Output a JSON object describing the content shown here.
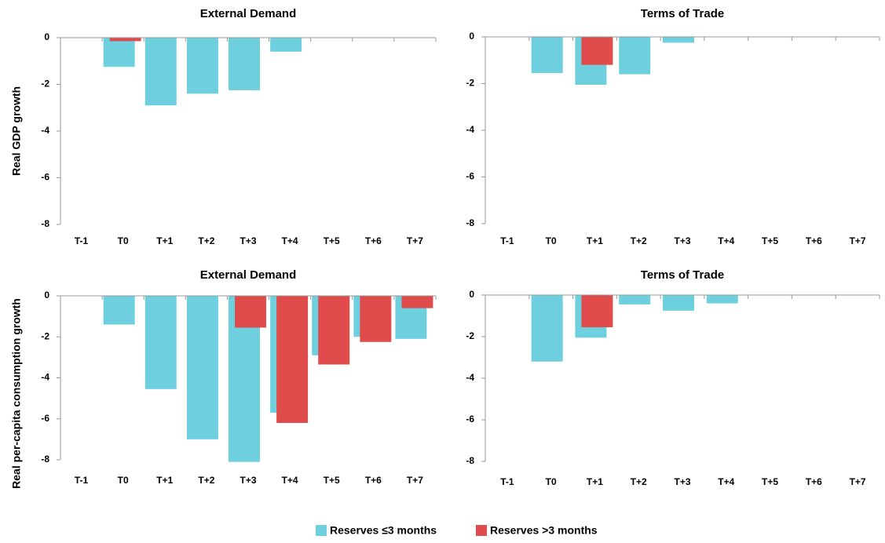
{
  "chart_data": [
    {
      "type": "bar",
      "title": "External Demand",
      "ylabel": "Real GDP growth",
      "categories": [
        "T-1",
        "T0",
        "T+1",
        "T+2",
        "T+3",
        "T+4",
        "T+5",
        "T+6",
        "T+7"
      ],
      "series": [
        {
          "name": "Reserves ≤3 months",
          "color": "#6ecfdf",
          "values": [
            0,
            -1.25,
            -2.9,
            -2.4,
            -2.25,
            -0.6,
            0,
            0,
            0
          ]
        },
        {
          "name": "Reserves >3 months",
          "color": "#e04c4b",
          "values": [
            0,
            -0.15,
            0,
            0,
            0,
            0,
            0,
            0,
            0
          ]
        }
      ],
      "ylim": [
        -8,
        0
      ],
      "yticks": [
        -8,
        -6,
        -4,
        -2,
        0
      ]
    },
    {
      "type": "bar",
      "title": "Terms of Trade",
      "categories": [
        "T-1",
        "T0",
        "T+1",
        "T+2",
        "T+3",
        "T+4",
        "T+5",
        "T+6",
        "T+7"
      ],
      "series": [
        {
          "name": "Reserves ≤3 months",
          "color": "#6ecfdf",
          "values": [
            0,
            -1.55,
            -2.05,
            -1.6,
            -0.25,
            0,
            0,
            0,
            0
          ]
        },
        {
          "name": "Reserves >3 months",
          "color": "#e04c4b",
          "values": [
            0,
            0,
            -1.2,
            0,
            0,
            0,
            0,
            0,
            0
          ]
        }
      ],
      "ylim": [
        -8,
        0
      ],
      "yticks": [
        -8,
        -6,
        -4,
        -2,
        0
      ]
    },
    {
      "type": "bar",
      "title": "External Demand",
      "ylabel": "Real per-capita consumption growth",
      "categories": [
        "T-1",
        "T0",
        "T+1",
        "T+2",
        "T+3",
        "T+4",
        "T+5",
        "T+6",
        "T+7"
      ],
      "series": [
        {
          "name": "Reserves ≤3 months",
          "color": "#6ecfdf",
          "values": [
            0,
            -1.4,
            -4.55,
            -7.0,
            -8.1,
            -5.7,
            -2.9,
            -2.0,
            -2.1
          ]
        },
        {
          "name": "Reserves >3 months",
          "color": "#e04c4b",
          "values": [
            0,
            0,
            0,
            0,
            -1.55,
            -6.2,
            -3.35,
            -2.25,
            -0.6
          ]
        }
      ],
      "ylim": [
        -8,
        0
      ],
      "yticks": [
        -8,
        -6,
        -4,
        -2,
        0
      ]
    },
    {
      "type": "bar",
      "title": "Terms of Trade",
      "categories": [
        "T-1",
        "T0",
        "T+1",
        "T+2",
        "T+3",
        "T+4",
        "T+5",
        "T+6",
        "T+7"
      ],
      "series": [
        {
          "name": "Reserves ≤3 months",
          "color": "#6ecfdf",
          "values": [
            0,
            -3.2,
            -2.05,
            -0.45,
            -0.75,
            -0.4,
            0,
            0,
            0
          ]
        },
        {
          "name": "Reserves >3 months",
          "color": "#e04c4b",
          "values": [
            0,
            0,
            -1.55,
            0,
            0,
            0,
            0,
            0,
            0
          ]
        }
      ],
      "ylim": [
        -8,
        0
      ],
      "yticks": [
        -8,
        -6,
        -4,
        -2,
        0
      ]
    }
  ]
}
